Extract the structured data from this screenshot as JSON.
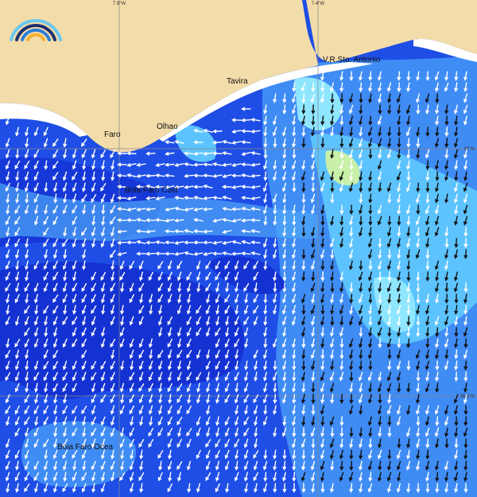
{
  "map": {
    "graticule": {
      "longitudes": [
        {
          "label": "7.9°W"
        },
        {
          "label": "7.4°W"
        }
      ],
      "latitudes": [
        {
          "label": "37°N"
        },
        {
          "label": "36.8°N"
        }
      ]
    },
    "places": [
      {
        "label": "Faro"
      },
      {
        "label": "Olhao"
      },
      {
        "label": "Tavira"
      },
      {
        "label": "V.R.Sto. Antonio"
      },
      {
        "label": "Boia Faro Cost"
      },
      {
        "label": "Boia Faro Ocea"
      }
    ]
  }
}
